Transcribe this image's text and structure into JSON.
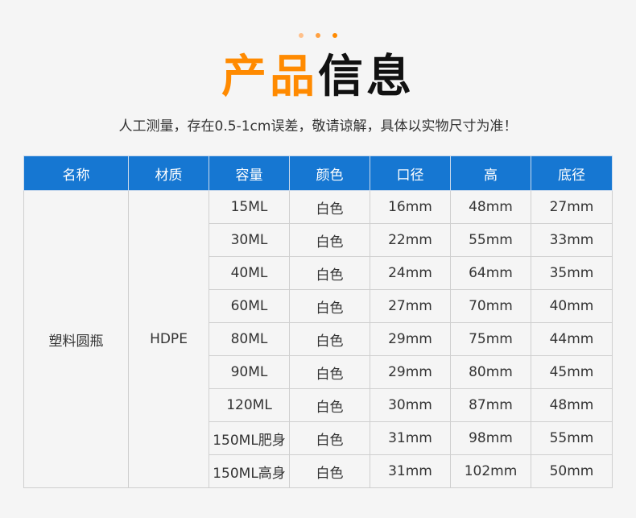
{
  "colors": {
    "accent": "#ff8a00",
    "header_bg": "#1677d2",
    "dots": [
      "#ffc08a",
      "#ffa040",
      "#ff8a00"
    ]
  },
  "title": {
    "part1": "产品",
    "part2": "信息"
  },
  "subtitle": "人工测量，存在0.5-1cm误差，敬请谅解，具体以实物尺寸为准！",
  "table": {
    "headers": [
      "名称",
      "材质",
      "容量",
      "颜色",
      "口径",
      "高",
      "底径"
    ],
    "name": "塑料圆瓶",
    "material": "HDPE",
    "rows": [
      [
        "15ML",
        "白色",
        "16mm",
        "48mm",
        "27mm"
      ],
      [
        "30ML",
        "白色",
        "22mm",
        "55mm",
        "33mm"
      ],
      [
        "40ML",
        "白色",
        "24mm",
        "64mm",
        "35mm"
      ],
      [
        "60ML",
        "白色",
        "27mm",
        "70mm",
        "40mm"
      ],
      [
        "80ML",
        "白色",
        "29mm",
        "75mm",
        "44mm"
      ],
      [
        "90ML",
        "白色",
        "29mm",
        "80mm",
        "45mm"
      ],
      [
        "120ML",
        "白色",
        "30mm",
        "87mm",
        "48mm"
      ],
      [
        "150ML肥身",
        "白色",
        "31mm",
        "98mm",
        "55mm"
      ],
      [
        "150ML高身",
        "白色",
        "31mm",
        "102mm",
        "50mm"
      ]
    ]
  }
}
